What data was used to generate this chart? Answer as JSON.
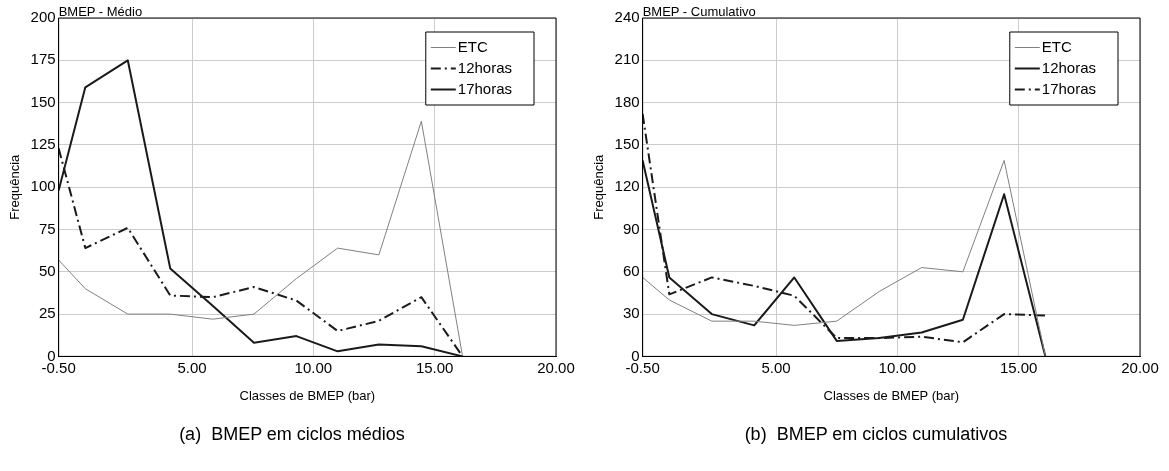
{
  "chart_data": [
    {
      "type": "line",
      "title": "BMEP - Médio",
      "xlabel": "Classes de BMEP (bar)",
      "ylabel": "Frequência",
      "annotations": [
        "(a)  BMEP em ciclos médios"
      ],
      "x": [
        -0.5,
        0.6,
        2.35,
        4.1,
        5.85,
        7.55,
        9.3,
        11,
        12.7,
        14.45,
        16.15
      ],
      "series": [
        {
          "name": "ETC",
          "color": "#808080",
          "line_style": "solid",
          "values": [
            57,
            40,
            25,
            25,
            22,
            25,
            46,
            64,
            60,
            139,
            0
          ]
        },
        {
          "name": "12horas",
          "color": "#1a1a1a",
          "line_style": "dashed",
          "values": [
            123,
            64,
            76,
            36,
            35,
            41,
            33,
            15,
            21,
            35,
            0
          ]
        },
        {
          "name": "17horas",
          "color": "#1a1a1a",
          "line_style": "solid",
          "values": [
            98,
            159,
            175,
            52,
            30,
            8,
            12,
            3,
            7,
            6,
            0
          ]
        }
      ],
      "xlim": [
        -0.5,
        20
      ],
      "ylim": [
        0,
        200
      ],
      "xticks": [
        {
          "value": -0.5,
          "label": "-0.50"
        },
        {
          "value": 5,
          "label": "5.00"
        },
        {
          "value": 10,
          "label": "10.00"
        },
        {
          "value": 15,
          "label": "15.00"
        },
        {
          "value": 20,
          "label": "20.00"
        }
      ],
      "yticks": [
        0,
        25,
        50,
        75,
        100,
        125,
        150,
        175,
        200
      ],
      "grid": true,
      "legend": "top right",
      "marker": "none"
    },
    {
      "type": "line",
      "title": "BMEP - Cumulativo",
      "xlabel": "Classes de BMEP (bar)",
      "ylabel": "Frequência",
      "annotations": [
        "(b)  BMEP em ciclos cumulativos"
      ],
      "x": [
        -0.5,
        0.6,
        2.35,
        4.1,
        5.75,
        7.5,
        9.25,
        11,
        12.7,
        14.4,
        16.1
      ],
      "series": [
        {
          "name": "ETC",
          "color": "#808080",
          "line_style": "solid",
          "values": [
            56,
            40,
            25,
            25,
            22,
            25,
            46,
            63,
            60,
            139,
            0
          ]
        },
        {
          "name": "12horas",
          "color": "#1a1a1a",
          "line_style": "solid",
          "values": [
            139,
            56,
            30,
            22,
            56,
            11,
            13,
            17,
            26,
            115,
            0
          ]
        },
        {
          "name": "17horas",
          "color": "#1a1a1a",
          "line_style": "dashed",
          "values": [
            172,
            44,
            56,
            50,
            43,
            13,
            13,
            14,
            10,
            30,
            29
          ]
        }
      ],
      "xlim": [
        -0.5,
        20
      ],
      "ylim": [
        0,
        240
      ],
      "xticks": [
        {
          "value": -0.5,
          "label": "-0.50"
        },
        {
          "value": 5,
          "label": "5.00"
        },
        {
          "value": 10,
          "label": "10.00"
        },
        {
          "value": 15,
          "label": "15.00"
        },
        {
          "value": 20,
          "label": "20.00"
        }
      ],
      "yticks": [
        0,
        30,
        60,
        90,
        120,
        150,
        180,
        210,
        240
      ],
      "grid": true,
      "legend": "top right",
      "marker": "none"
    }
  ]
}
